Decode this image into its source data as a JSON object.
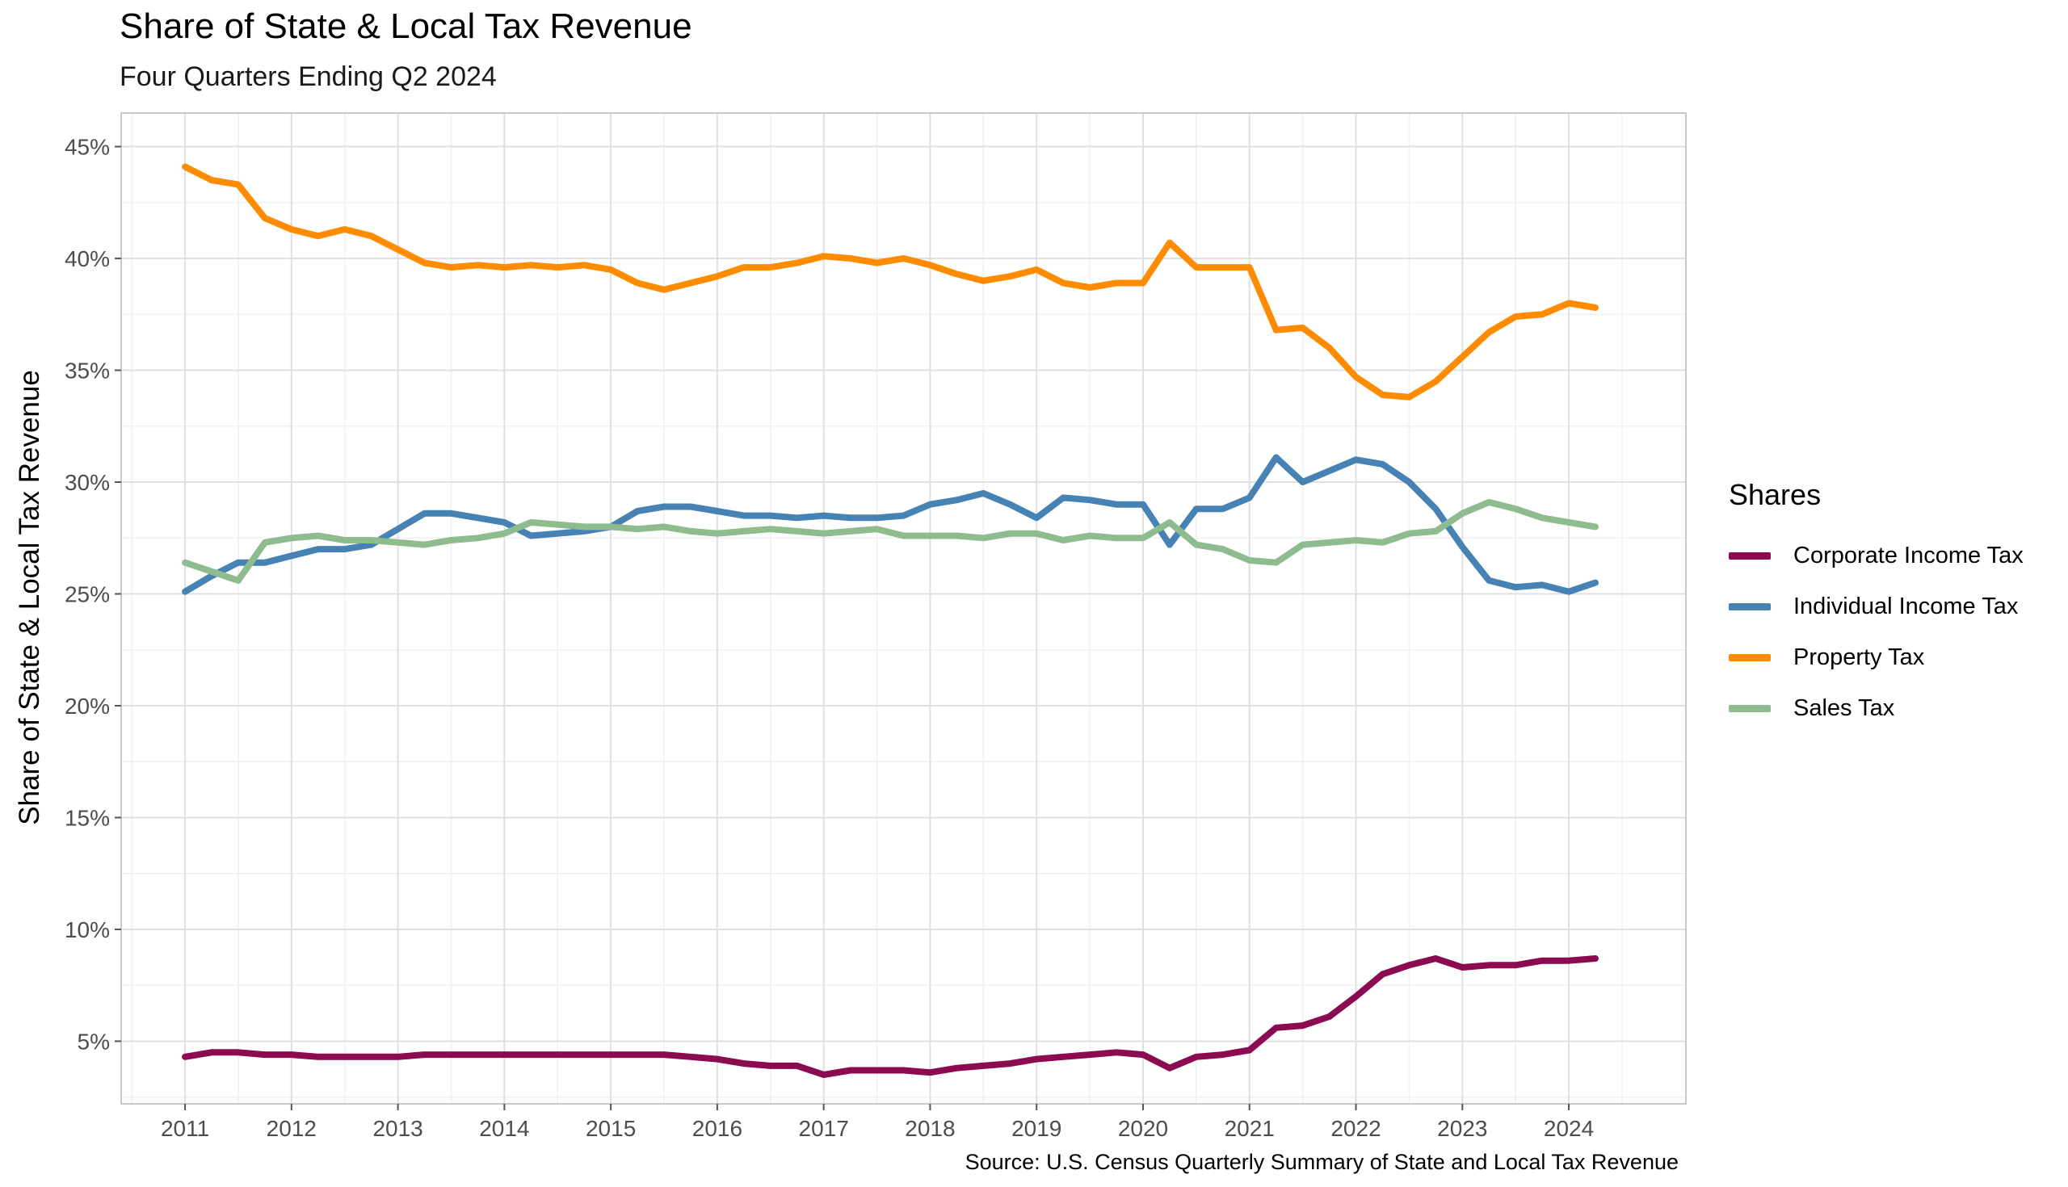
{
  "chart_data": {
    "type": "line",
    "title": "Share of State & Local Tax Revenue",
    "subtitle": "Four Quarters Ending Q2 2024",
    "ylabel": "Share of State & Local Tax Revenue",
    "xlabel": "",
    "caption": "Source: U.S. Census Quarterly Summary of State and Local Tax Revenue",
    "ylim": [
      0.022,
      0.465
    ],
    "xlim": [
      2010.4,
      2025.1
    ],
    "yticks": [
      0.05,
      0.1,
      0.15,
      0.2,
      0.25,
      0.3,
      0.35,
      0.4,
      0.45
    ],
    "ytick_labels": [
      "5%",
      "10%",
      "15%",
      "20%",
      "25%",
      "30%",
      "35%",
      "40%",
      "45%"
    ],
    "xticks": [
      2011,
      2012,
      2013,
      2014,
      2015,
      2016,
      2017,
      2018,
      2019,
      2020,
      2021,
      2022,
      2023,
      2024
    ],
    "xtick_labels": [
      "2011",
      "2012",
      "2013",
      "2014",
      "2015",
      "2016",
      "2017",
      "2018",
      "2019",
      "2020",
      "2021",
      "2022",
      "2023",
      "2024"
    ],
    "grid": true,
    "legend_title": "Shares",
    "legend_position": "right",
    "x": [
      2011.0,
      2011.25,
      2011.5,
      2011.75,
      2012.0,
      2012.25,
      2012.5,
      2012.75,
      2013.0,
      2013.25,
      2013.5,
      2013.75,
      2014.0,
      2014.25,
      2014.5,
      2014.75,
      2015.0,
      2015.25,
      2015.5,
      2015.75,
      2016.0,
      2016.25,
      2016.5,
      2016.75,
      2017.0,
      2017.25,
      2017.5,
      2017.75,
      2018.0,
      2018.25,
      2018.5,
      2018.75,
      2019.0,
      2019.25,
      2019.5,
      2019.75,
      2020.0,
      2020.25,
      2020.5,
      2020.75,
      2021.0,
      2021.25,
      2021.5,
      2021.75,
      2022.0,
      2022.25,
      2022.5,
      2022.75,
      2023.0,
      2023.25,
      2023.5,
      2023.75,
      2024.0,
      2024.25
    ],
    "series": [
      {
        "name": "Corporate Income Tax",
        "color": "#8b0a50",
        "values": [
          0.043,
          0.045,
          0.045,
          0.044,
          0.044,
          0.043,
          0.043,
          0.043,
          0.043,
          0.044,
          0.044,
          0.044,
          0.044,
          0.044,
          0.044,
          0.044,
          0.044,
          0.044,
          0.044,
          0.043,
          0.042,
          0.04,
          0.039,
          0.039,
          0.035,
          0.037,
          0.037,
          0.037,
          0.036,
          0.038,
          0.039,
          0.04,
          0.042,
          0.043,
          0.044,
          0.045,
          0.044,
          0.038,
          0.043,
          0.044,
          0.046,
          0.056,
          0.057,
          0.061,
          0.07,
          0.08,
          0.084,
          0.087,
          0.083,
          0.084,
          0.084,
          0.086,
          0.086,
          0.087
        ]
      },
      {
        "name": "Individual Income Tax",
        "color": "#4682b4",
        "values": [
          0.251,
          0.258,
          0.264,
          0.264,
          0.267,
          0.27,
          0.27,
          0.272,
          0.279,
          0.286,
          0.286,
          0.284,
          0.282,
          0.276,
          0.277,
          0.278,
          0.28,
          0.287,
          0.289,
          0.289,
          0.287,
          0.285,
          0.285,
          0.284,
          0.285,
          0.284,
          0.284,
          0.285,
          0.29,
          0.292,
          0.295,
          0.29,
          0.284,
          0.293,
          0.292,
          0.29,
          0.29,
          0.272,
          0.288,
          0.288,
          0.293,
          0.311,
          0.3,
          0.305,
          0.31,
          0.308,
          0.3,
          0.288,
          0.271,
          0.256,
          0.253,
          0.254,
          0.251,
          0.255
        ]
      },
      {
        "name": "Property Tax",
        "color": "#ff8c00",
        "values": [
          0.441,
          0.435,
          0.433,
          0.418,
          0.413,
          0.41,
          0.413,
          0.41,
          0.404,
          0.398,
          0.396,
          0.397,
          0.396,
          0.397,
          0.396,
          0.397,
          0.395,
          0.389,
          0.386,
          0.389,
          0.392,
          0.396,
          0.396,
          0.398,
          0.401,
          0.4,
          0.398,
          0.4,
          0.397,
          0.393,
          0.39,
          0.392,
          0.395,
          0.389,
          0.387,
          0.389,
          0.389,
          0.407,
          0.396,
          0.396,
          0.396,
          0.368,
          0.369,
          0.36,
          0.347,
          0.339,
          0.338,
          0.345,
          0.356,
          0.367,
          0.374,
          0.375,
          0.38,
          0.378
        ]
      },
      {
        "name": "Sales Tax",
        "color": "#8fbc8f",
        "values": [
          0.264,
          0.26,
          0.256,
          0.273,
          0.275,
          0.276,
          0.274,
          0.274,
          0.273,
          0.272,
          0.274,
          0.275,
          0.277,
          0.282,
          0.281,
          0.28,
          0.28,
          0.279,
          0.28,
          0.278,
          0.277,
          0.278,
          0.279,
          0.278,
          0.277,
          0.278,
          0.279,
          0.276,
          0.276,
          0.276,
          0.275,
          0.277,
          0.277,
          0.274,
          0.276,
          0.275,
          0.275,
          0.282,
          0.272,
          0.27,
          0.265,
          0.264,
          0.272,
          0.273,
          0.274,
          0.273,
          0.277,
          0.278,
          0.286,
          0.291,
          0.288,
          0.284,
          0.282,
          0.28
        ]
      }
    ]
  }
}
